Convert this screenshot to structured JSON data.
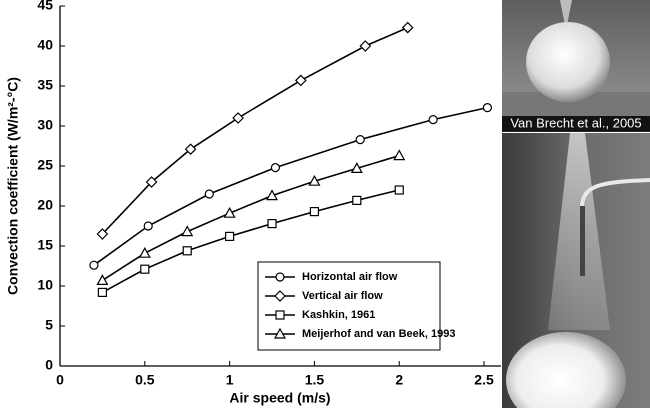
{
  "chart_data": {
    "type": "line",
    "xlabel": "Air speed (m/s)",
    "ylabel": "Convection coefficient (W/m²-°C)",
    "xlim": [
      0,
      2.6
    ],
    "xticks": [
      0,
      0.5,
      1,
      1.5,
      2,
      2.5
    ],
    "ylim": [
      0,
      45
    ],
    "yticks": [
      0,
      5,
      10,
      15,
      20,
      25,
      30,
      35,
      40,
      45
    ],
    "legend": "lower right",
    "series": [
      {
        "name": "Horizontal air flow",
        "color": "#000000",
        "marker": "circle",
        "x": [
          0.2,
          0.52,
          0.88,
          1.27,
          1.77,
          2.2,
          2.52
        ],
        "values": [
          12.6,
          17.5,
          21.5,
          24.8,
          28.3,
          30.8,
          32.3
        ]
      },
      {
        "name": "Vertical air flow",
        "color": "#000000",
        "marker": "diamond",
        "x": [
          0.25,
          0.54,
          0.77,
          1.05,
          1.42,
          1.8,
          2.05
        ],
        "values": [
          16.5,
          23,
          27.1,
          31,
          35.7,
          40,
          42.3
        ]
      },
      {
        "name": "Kashkin, 1961",
        "color": "#000000",
        "marker": "square",
        "x": [
          0.25,
          0.5,
          0.75,
          1.0,
          1.25,
          1.5,
          1.75,
          2.0
        ],
        "values": [
          9.2,
          12.1,
          14.4,
          16.2,
          17.8,
          19.3,
          20.7,
          22
        ]
      },
      {
        "name": "Meijerhof and van Beek, 1993",
        "color": "#000000",
        "marker": "triangle",
        "x": [
          0.25,
          0.5,
          0.75,
          1.0,
          1.25,
          1.5,
          1.75,
          2.0
        ],
        "values": [
          10.7,
          14.1,
          16.8,
          19.1,
          21.3,
          23.1,
          24.7,
          26.3
        ]
      }
    ]
  },
  "image_caption": "Van Brecht et al., 2005"
}
